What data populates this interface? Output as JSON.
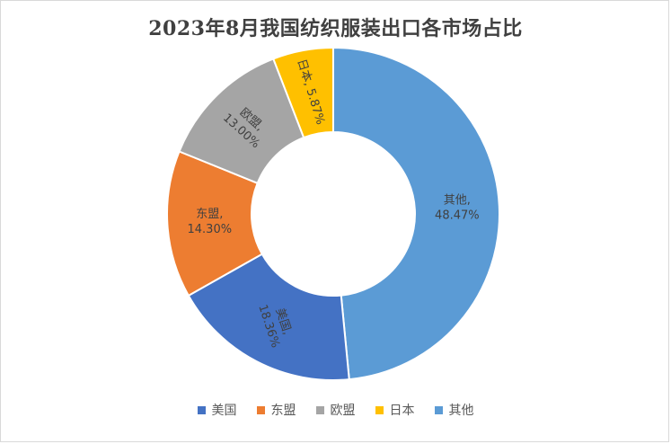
{
  "chart_data": {
    "type": "pie",
    "variant": "donut",
    "title": "2023年8月我国纺织服装出口各市场占比",
    "legend_position": "bottom",
    "categories": [
      "美国",
      "东盟",
      "欧盟",
      "日本",
      "其他"
    ],
    "values": [
      18.36,
      14.3,
      13.0,
      5.87,
      48.47
    ],
    "labels": [
      "18.36%",
      "14.30%",
      "13.00%",
      "5.87%",
      "48.47%"
    ],
    "colors": [
      "#4472C4",
      "#ED7D31",
      "#A5A5A5",
      "#FFC000",
      "#5B9BD5"
    ],
    "slice_order": [
      "其他",
      "美国",
      "东盟",
      "欧盟",
      "日本"
    ],
    "start_angle_deg": 0,
    "direction": "clockwise"
  }
}
